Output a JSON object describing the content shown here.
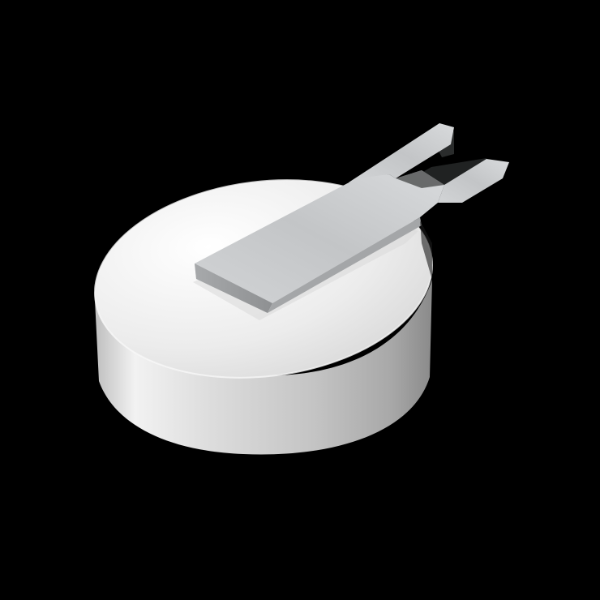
{
  "scene": {
    "background": "#000000",
    "object": "coin-cell-battery-with-solder-tab",
    "colors": {
      "body_top": "#ebebeb",
      "body_side_light": "#e6e6e6",
      "body_side_dark": "#8c8c8c",
      "tab_face": "#c7c9cb",
      "tab_edge": "#9a9c9e",
      "tab_shadow": "#1e2020"
    }
  }
}
